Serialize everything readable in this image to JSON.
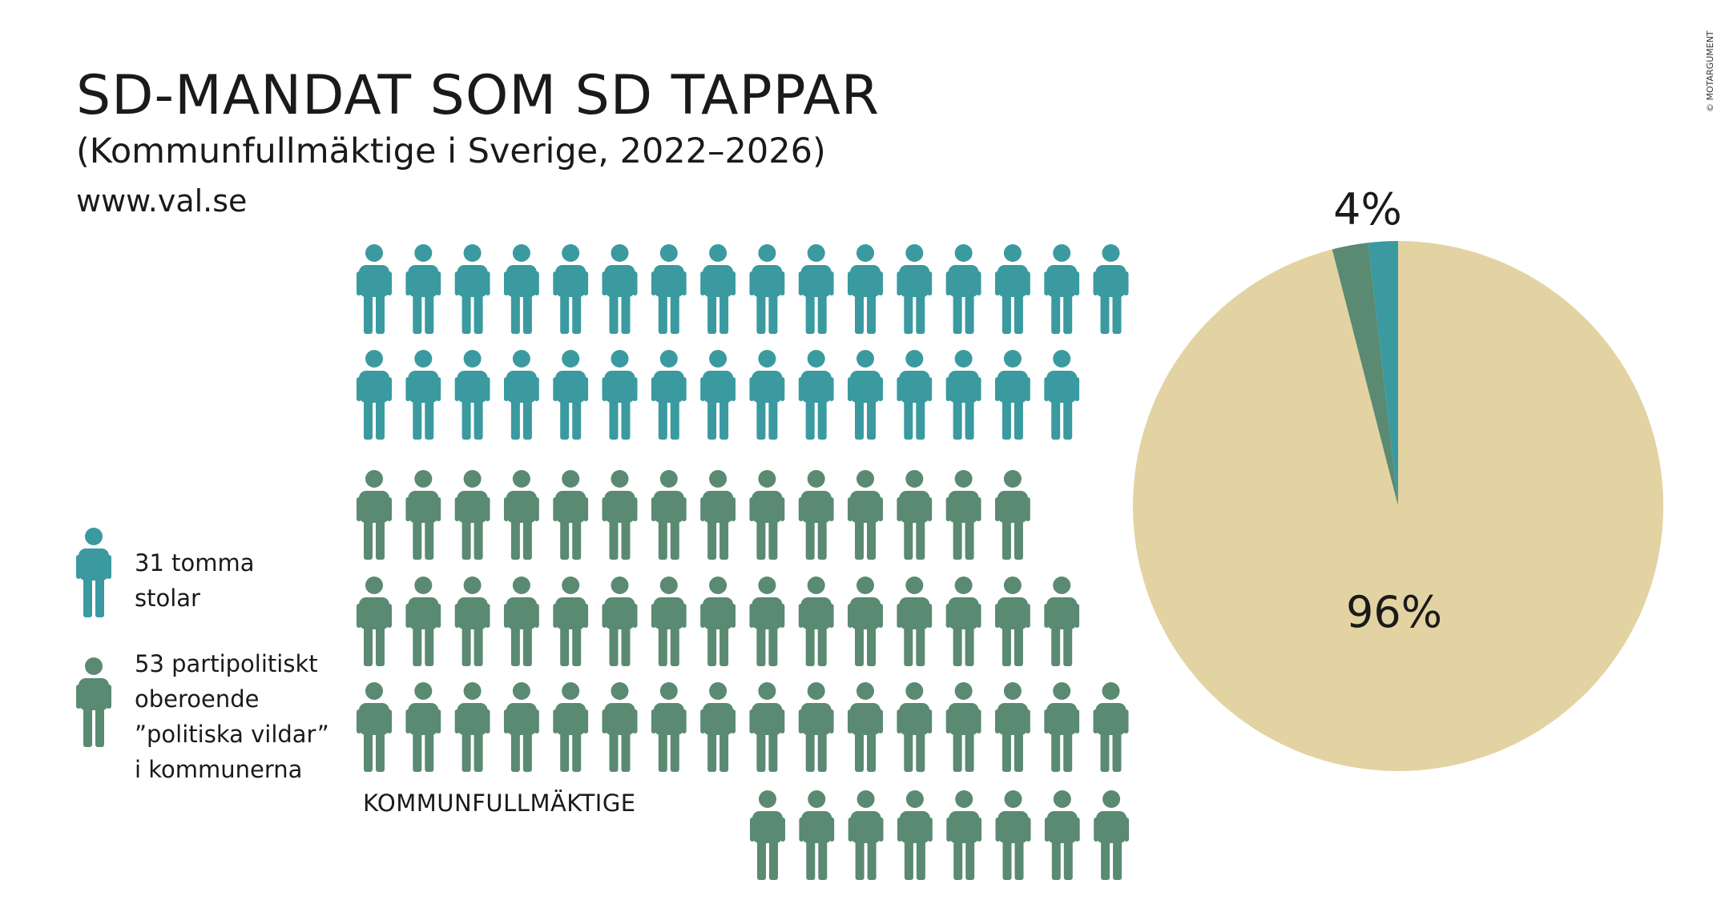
{
  "header": {
    "title": "SD-MANDAT SOM SD TAPPAR",
    "subtitle": "(Kommunfullmäktige i Sverige, 2022–2026)",
    "source": "www.val.se",
    "copyright": "© MOTARGUMENT"
  },
  "legend": {
    "empty_seats": {
      "lines": [
        "31 tomma",
        "stolar"
      ],
      "icon": "person-icon",
      "color": "#3a9aa0"
    },
    "independents": {
      "lines": [
        "53 partipolitiskt",
        "oberoende",
        "”politiska vildar”",
        "i kommunerna"
      ],
      "icon": "person-icon",
      "color": "#5a8a72"
    }
  },
  "group_label": "KOMMUNFULLMÄKTIGE",
  "chart_data": [
    {
      "type": "pictogram",
      "series": [
        {
          "name": "31 tomma stolar",
          "value": 31,
          "color": "#3a9aa0",
          "rows": [
            16,
            15
          ]
        },
        {
          "name": "53 partipolitiskt oberoende ”politiska vildar” i kommunerna",
          "value": 53,
          "color": "#5a8a72",
          "rows": [
            14,
            15,
            16,
            8
          ]
        }
      ]
    },
    {
      "type": "pie",
      "slices": [
        {
          "label": "96%",
          "value": 96,
          "color": "#e3d3a2"
        },
        {
          "label": "",
          "value": 2.2,
          "color": "#5a8a72"
        },
        {
          "label": "",
          "value": 1.8,
          "color": "#3a9aa0"
        }
      ],
      "outer_label": "4%"
    }
  ]
}
